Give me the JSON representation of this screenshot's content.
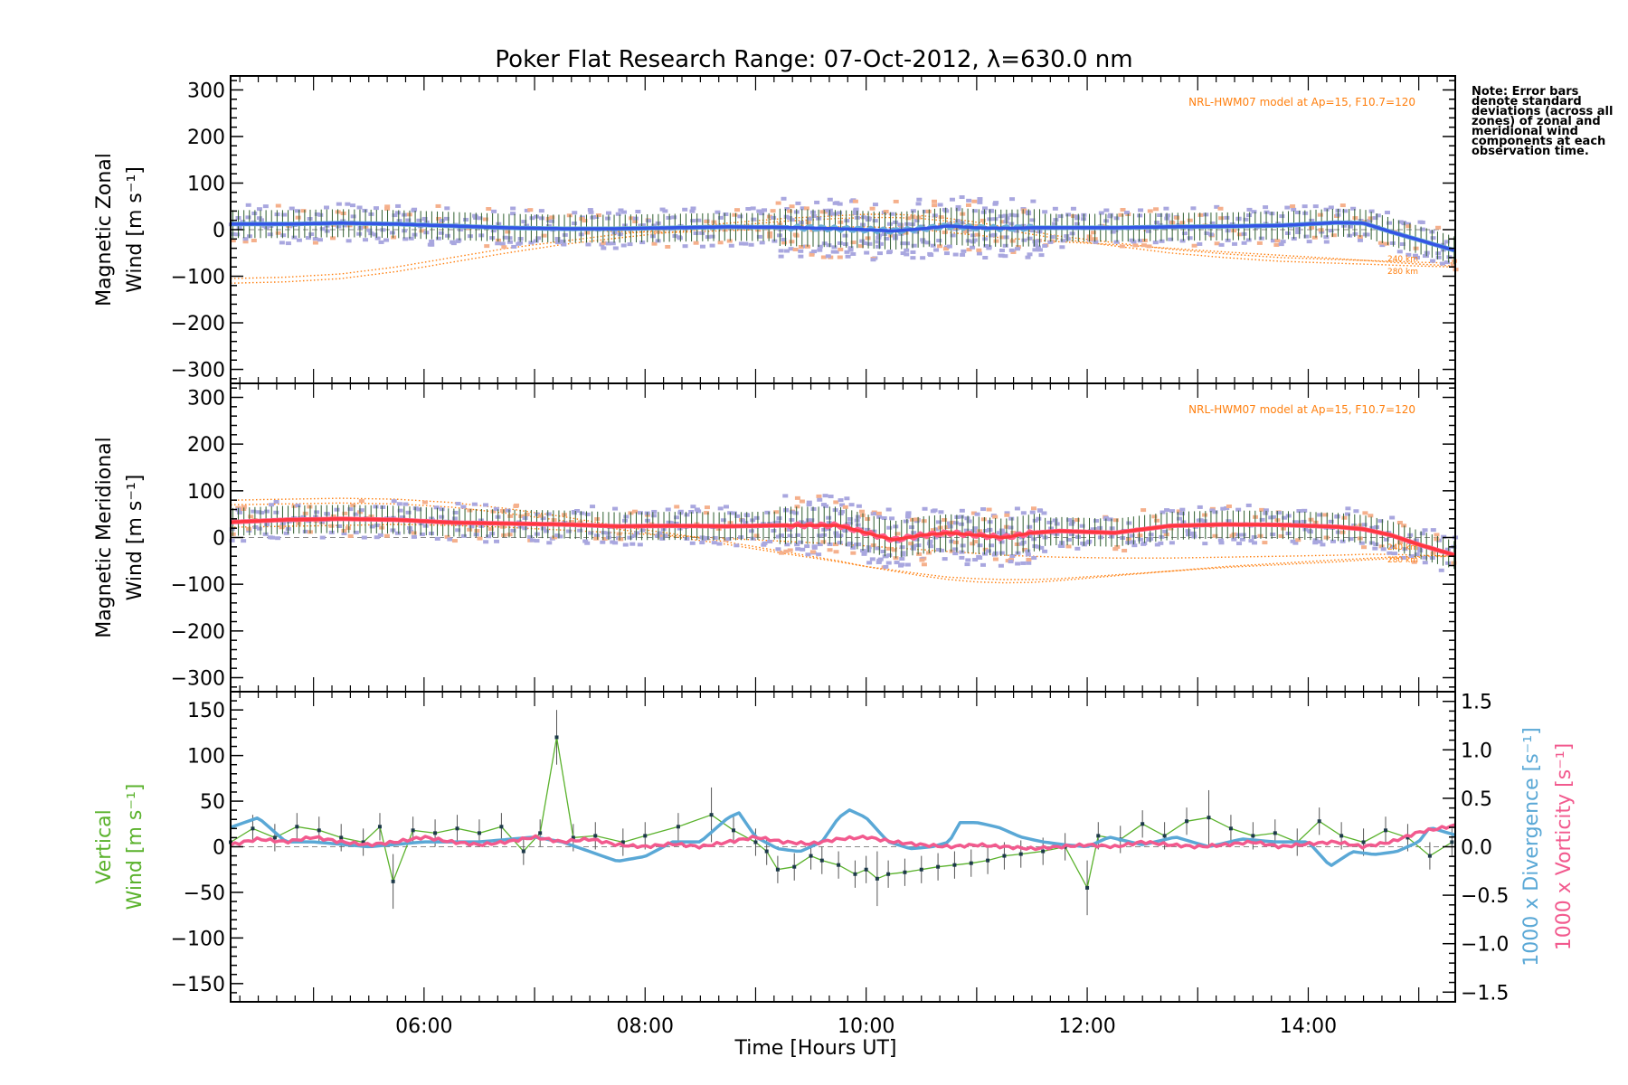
{
  "title": "Poker Flat Research Range: 07-Oct-2012, λ=630.0 nm",
  "note": "Note: Error bars denote standard deviations (across all zones) of zonal and meridional wind components at each observation time.",
  "colors": {
    "zonal": "#2a44e8",
    "zonal_light": "#6aaed6",
    "meridional": "#ff3030",
    "meridional_light": "#ff5c8a",
    "scatter": "#a9a7df",
    "scatter_warm": "#f5b08c",
    "model": "#ff7f0e",
    "errorbar": "#2f5f2f",
    "vertical": "#5ab22c",
    "divergence": "#5aa8d6",
    "vorticity": "#f25a8e"
  },
  "chart_data": [
    {
      "panel": "zonal",
      "type": "line",
      "ylabel_line1": "Magnetic Zonal",
      "ylabel_line2": "Wind [m s⁻¹]",
      "annotation": "NRL-HWM07 model at Ap=15, F10.7=120",
      "model_labels": [
        "240 km",
        "280 km"
      ],
      "xlim": [
        4.25,
        15.33
      ],
      "ylim": [
        -330,
        330
      ],
      "yticks": [
        300,
        200,
        100,
        0,
        -100,
        -200,
        -300
      ],
      "ytick_labels": [
        "300",
        "200",
        "100",
        "0",
        "−100",
        "−200",
        "−300"
      ],
      "x": [
        4.25,
        4.75,
        5.25,
        5.75,
        6.25,
        6.75,
        7.25,
        7.75,
        8.25,
        8.75,
        9.25,
        9.75,
        10.0,
        10.25,
        10.5,
        10.75,
        11.0,
        11.25,
        11.5,
        11.75,
        12.25,
        12.75,
        13.25,
        13.75,
        14.25,
        14.5,
        14.75,
        15.0,
        15.33
      ],
      "series": [
        {
          "values": [
            12,
            12,
            14,
            12,
            8,
            4,
            2,
            2,
            4,
            6,
            5,
            2,
            0,
            -3,
            2,
            8,
            4,
            3,
            4,
            4,
            4,
            6,
            7,
            9,
            15,
            14,
            -5,
            -22,
            -45
          ]
        }
      ],
      "model_curves": [
        [
          -115,
          -112,
          -105,
          -90,
          -70,
          -50,
          -32,
          -18,
          -5,
          8,
          18,
          24,
          26,
          26,
          24,
          18,
          10,
          0,
          -10,
          -20,
          -35,
          -50,
          -60,
          -68,
          -72,
          -74,
          -76,
          -78,
          -80
        ],
        [
          -105,
          -102,
          -95,
          -80,
          -60,
          -40,
          -25,
          -10,
          2,
          14,
          24,
          30,
          33,
          33,
          30,
          24,
          16,
          6,
          -4,
          -14,
          -28,
          -42,
          -52,
          -60,
          -64,
          -66,
          -68,
          -70,
          -72
        ],
        [
          10,
          12,
          14,
          12,
          8,
          4,
          0,
          -4,
          -6,
          -2,
          2,
          6,
          6,
          4,
          0,
          -6,
          -12,
          -18,
          -22,
          -26,
          -32,
          -40,
          -48,
          -55,
          -62,
          -66,
          -70,
          -74,
          -78
        ]
      ]
    },
    {
      "panel": "meridional",
      "type": "line",
      "ylabel_line1": "Magnetic Meridional",
      "ylabel_line2": "Wind [m s⁻¹]",
      "annotation": "NRL-HWM07 model at Ap=15, F10.7=120",
      "model_labels": [
        "240 km",
        "280 km"
      ],
      "xlim": [
        4.25,
        15.33
      ],
      "ylim": [
        -330,
        330
      ],
      "yticks": [
        300,
        200,
        100,
        0,
        -100,
        -200,
        -300
      ],
      "ytick_labels": [
        "300",
        "200",
        "100",
        "0",
        "−100",
        "−200",
        "−300"
      ],
      "x": [
        4.25,
        4.75,
        5.25,
        5.75,
        6.25,
        6.75,
        7.25,
        7.75,
        8.25,
        8.75,
        9.25,
        9.75,
        10.0,
        10.25,
        10.5,
        10.75,
        11.0,
        11.25,
        11.5,
        11.75,
        12.25,
        12.75,
        13.25,
        13.75,
        14.25,
        14.5,
        14.75,
        15.0,
        15.33
      ],
      "series": [
        {
          "values": [
            33,
            38,
            40,
            38,
            32,
            30,
            28,
            24,
            25,
            24,
            26,
            26,
            10,
            -5,
            5,
            10,
            5,
            0,
            10,
            14,
            10,
            25,
            28,
            27,
            23,
            18,
            5,
            -15,
            -38
          ]
        }
      ],
      "model_curves": [
        [
          80,
          82,
          84,
          82,
          75,
          62,
          45,
          25,
          8,
          -10,
          -30,
          -50,
          -62,
          -72,
          -82,
          -90,
          -95,
          -97,
          -96,
          -92,
          -82,
          -72,
          -62,
          -55,
          -48,
          -45,
          -42,
          -40,
          -38
        ],
        [
          70,
          72,
          74,
          72,
          65,
          52,
          36,
          18,
          2,
          -15,
          -34,
          -52,
          -62,
          -70,
          -78,
          -85,
          -88,
          -90,
          -90,
          -88,
          -80,
          -72,
          -64,
          -58,
          -52,
          -48,
          -45,
          -42,
          -40
        ],
        [
          22,
          24,
          26,
          28,
          26,
          22,
          16,
          10,
          4,
          -2,
          -8,
          -14,
          -18,
          -22,
          -26,
          -30,
          -34,
          -38,
          -40,
          -42,
          -44,
          -44,
          -42,
          -40,
          -38,
          -36,
          -36,
          -38,
          -40
        ]
      ]
    },
    {
      "panel": "vertical",
      "type": "line",
      "ylabel_line1": "Vertical",
      "ylabel_line2": "Wind [m s⁻¹]",
      "right_label_divergence": "1000 x Divergence [s⁻¹]",
      "right_label_vorticity": "1000 x Vorticity [s⁻¹]",
      "xlabel": "Time [Hours UT]",
      "xlim": [
        4.25,
        15.33
      ],
      "ylim": [
        -170,
        170
      ],
      "yticks": [
        150,
        100,
        50,
        0,
        -50,
        -100,
        -150
      ],
      "ytick_labels": [
        "150",
        "100",
        "50",
        "0",
        "−50",
        "−100",
        "−150"
      ],
      "y2lim": [
        -1.6,
        1.6
      ],
      "y2ticks": [
        1.5,
        1.0,
        0.5,
        0.0,
        -0.5,
        -1.0,
        -1.5
      ],
      "y2tick_labels": [
        "1.5",
        "1.0",
        "0.5",
        "0.0",
        "−0.5",
        "−1.0",
        "−1.5"
      ],
      "xticks": [
        6,
        8,
        10,
        12,
        14
      ],
      "xtick_labels": [
        "06:00",
        "08:00",
        "10:00",
        "12:00",
        "14:00"
      ],
      "vertical_wind": {
        "x": [
          4.25,
          4.45,
          4.65,
          4.85,
          5.05,
          5.25,
          5.45,
          5.6,
          5.72,
          5.9,
          6.1,
          6.3,
          6.5,
          6.7,
          6.9,
          7.05,
          7.2,
          7.35,
          7.55,
          7.8,
          8.0,
          8.3,
          8.6,
          8.8,
          9.0,
          9.1,
          9.2,
          9.35,
          9.5,
          9.6,
          9.75,
          9.9,
          10.0,
          10.1,
          10.2,
          10.35,
          10.5,
          10.65,
          10.8,
          10.95,
          11.1,
          11.25,
          11.4,
          11.6,
          11.8,
          12.0,
          12.1,
          12.3,
          12.5,
          12.7,
          12.9,
          13.1,
          13.3,
          13.5,
          13.7,
          13.9,
          14.1,
          14.3,
          14.5,
          14.7,
          14.9,
          15.1,
          15.3
        ],
        "values": [
          5,
          20,
          10,
          22,
          18,
          10,
          5,
          22,
          -38,
          18,
          15,
          20,
          15,
          22,
          -5,
          15,
          120,
          10,
          12,
          5,
          12,
          22,
          35,
          18,
          5,
          -5,
          -25,
          -22,
          -10,
          -15,
          -20,
          -30,
          -25,
          -35,
          -30,
          -28,
          -25,
          -22,
          -20,
          -18,
          -15,
          -10,
          -8,
          -5,
          0,
          -45,
          12,
          8,
          25,
          12,
          28,
          32,
          20,
          12,
          15,
          5,
          28,
          12,
          5,
          18,
          10,
          -10,
          5
        ]
      },
      "divergence": {
        "x": [
          4.25,
          4.5,
          4.75,
          5.0,
          5.5,
          6.0,
          6.5,
          7.0,
          7.25,
          7.5,
          7.75,
          8.0,
          8.25,
          8.5,
          8.75,
          8.85,
          9.0,
          9.2,
          9.4,
          9.6,
          9.75,
          9.85,
          10.0,
          10.2,
          10.4,
          10.6,
          10.75,
          10.85,
          11.0,
          11.2,
          11.4,
          11.6,
          11.8,
          12.0,
          12.2,
          12.5,
          12.8,
          13.1,
          13.4,
          13.7,
          14.0,
          14.2,
          14.4,
          14.6,
          14.8,
          15.0,
          15.1,
          15.33
        ],
        "values": [
          0.2,
          0.3,
          0.05,
          0.05,
          0.0,
          0.05,
          0.05,
          0.1,
          0.05,
          -0.05,
          -0.15,
          -0.1,
          0.05,
          0.05,
          0.3,
          0.35,
          0.1,
          -0.02,
          -0.05,
          0.05,
          0.3,
          0.38,
          0.3,
          0.05,
          -0.02,
          0.0,
          0.05,
          0.25,
          0.25,
          0.2,
          0.1,
          0.05,
          0.02,
          0.0,
          0.1,
          0.02,
          0.1,
          0.0,
          0.08,
          0.05,
          0.05,
          -0.2,
          -0.05,
          -0.08,
          -0.05,
          0.05,
          0.2,
          0.12
        ]
      },
      "vorticity": {
        "x": [
          4.25,
          4.5,
          4.75,
          5.0,
          5.25,
          5.5,
          5.75,
          6.0,
          6.25,
          6.5,
          6.75,
          7.0,
          7.25,
          7.5,
          7.75,
          8.0,
          8.25,
          8.5,
          8.75,
          9.0,
          9.25,
          9.5,
          9.75,
          10.0,
          10.25,
          10.5,
          10.75,
          11.0,
          11.25,
          11.5,
          11.75,
          12.0,
          12.25,
          12.5,
          12.75,
          13.0,
          13.25,
          13.5,
          13.75,
          14.0,
          14.25,
          14.5,
          14.75,
          15.0,
          15.33
        ],
        "values": [
          0.02,
          0.08,
          0.05,
          0.1,
          0.05,
          0.02,
          0.05,
          0.1,
          0.05,
          0.02,
          0.05,
          0.1,
          0.05,
          0.08,
          0.02,
          0.0,
          0.03,
          0.0,
          0.05,
          0.1,
          0.05,
          0.03,
          0.08,
          0.1,
          0.05,
          0.02,
          0.0,
          0.02,
          0.0,
          -0.02,
          0.0,
          0.02,
          0.0,
          0.05,
          0.02,
          0.0,
          0.02,
          0.05,
          0.0,
          0.03,
          0.05,
          0.0,
          0.05,
          0.15,
          0.22
        ]
      }
    }
  ]
}
